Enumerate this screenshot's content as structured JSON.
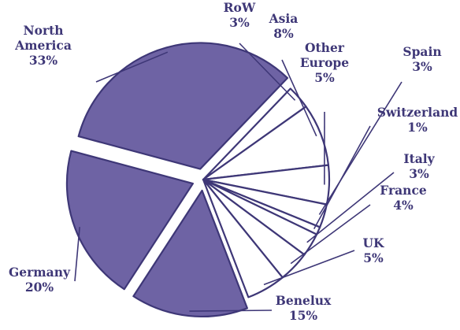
{
  "chart_data": {
    "type": "pie",
    "title": "",
    "series": [
      {
        "name": "",
        "slices": [
          {
            "label": "North America",
            "label_lines": [
              "North",
              "America",
              "33%"
            ],
            "value": 33,
            "display": "33%",
            "exploded": true
          },
          {
            "label": "RoW",
            "label_lines": [
              "RoW",
              "3%"
            ],
            "value": 3,
            "display": "3%",
            "exploded": false
          },
          {
            "label": "Asia",
            "label_lines": [
              "Asia",
              "8%"
            ],
            "value": 8,
            "display": "8%",
            "exploded": false
          },
          {
            "label": "Other Europe",
            "label_lines": [
              "Other",
              "Europe",
              "5%"
            ],
            "value": 5,
            "display": "5%",
            "exploded": false
          },
          {
            "label": "Spain",
            "label_lines": [
              "Spain",
              "3%"
            ],
            "value": 3,
            "display": "3%",
            "exploded": false
          },
          {
            "label": "Switzerland",
            "label_lines": [
              "Switzerland",
              "1%"
            ],
            "value": 1,
            "display": "1%",
            "exploded": false
          },
          {
            "label": "Italy",
            "label_lines": [
              "Italy",
              "3%"
            ],
            "value": 3,
            "display": "3%",
            "exploded": false
          },
          {
            "label": "France",
            "label_lines": [
              "France",
              "4%"
            ],
            "value": 4,
            "display": "4%",
            "exploded": false
          },
          {
            "label": "UK",
            "label_lines": [
              "UK",
              "5%"
            ],
            "value": 5,
            "display": "5%",
            "exploded": false
          },
          {
            "label": "Benelux",
            "label_lines": [
              "Benelux",
              "15%"
            ],
            "value": 15,
            "display": "15%",
            "exploded": true
          },
          {
            "label": "Germany",
            "label_lines": [
              "Germany",
              "20%"
            ],
            "value": 20,
            "display": "20%",
            "exploded": true
          }
        ]
      }
    ],
    "colors": {
      "exploded_fill": "#6e63a4",
      "plain_fill": "#ffffff",
      "outline": "#3e3777",
      "label": "#3e3777"
    },
    "legend": "none",
    "grid": false
  }
}
